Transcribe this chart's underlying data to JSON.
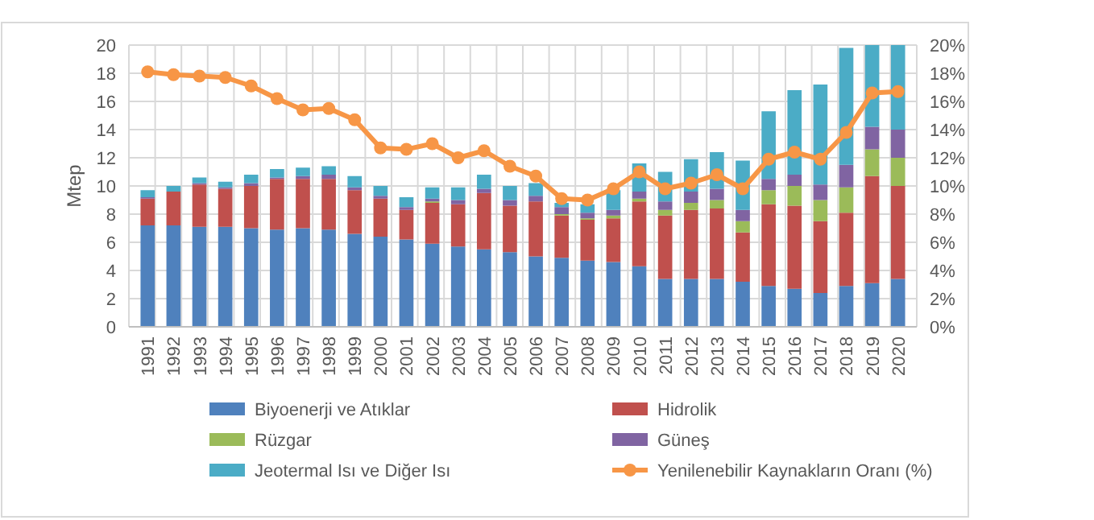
{
  "chart_data": {
    "type": "bar",
    "stacked": true,
    "ylabel": "Mtep",
    "grid": true,
    "legend": "bottom",
    "categories": [
      "1991",
      "1992",
      "1993",
      "1994",
      "1995",
      "1996",
      "1997",
      "1998",
      "1999",
      "2000",
      "2001",
      "2002",
      "2003",
      "2004",
      "2005",
      "2006",
      "2007",
      "2008",
      "2009",
      "2010",
      "2011",
      "2012",
      "2013",
      "2014",
      "2015",
      "2016",
      "2017",
      "2018",
      "2019",
      "2020"
    ],
    "ylim": [
      0,
      20
    ],
    "yticks": [
      0,
      2,
      4,
      6,
      8,
      10,
      12,
      14,
      16,
      18,
      20
    ],
    "y2lim": [
      0,
      20
    ],
    "y2ticks": [
      {
        "value": 0,
        "label": "0%"
      },
      {
        "value": 2,
        "label": "2%"
      },
      {
        "value": 4,
        "label": "4%"
      },
      {
        "value": 6,
        "label": "6%"
      },
      {
        "value": 8,
        "label": "8%"
      },
      {
        "value": 10,
        "label": "10%"
      },
      {
        "value": 12,
        "label": "12%"
      },
      {
        "value": 14,
        "label": "14%"
      },
      {
        "value": 16,
        "label": "16%"
      },
      {
        "value": 18,
        "label": "18%"
      },
      {
        "value": 20,
        "label": "20%"
      }
    ],
    "series": [
      {
        "name": "Biyoenerji ve Atıklar",
        "color": "#4f81bd",
        "values": [
          7.2,
          7.2,
          7.1,
          7.1,
          7.0,
          6.9,
          7.0,
          6.9,
          6.6,
          6.4,
          6.2,
          5.9,
          5.7,
          5.5,
          5.3,
          5.0,
          4.9,
          4.7,
          4.6,
          4.3,
          3.4,
          3.4,
          3.4,
          3.2,
          2.9,
          2.7,
          2.4,
          2.9,
          3.1,
          3.4
        ]
      },
      {
        "name": "Hidrolik",
        "color": "#c0504d",
        "values": [
          1.9,
          2.4,
          3.0,
          2.7,
          3.0,
          3.6,
          3.5,
          3.6,
          3.1,
          2.7,
          2.1,
          2.9,
          3.0,
          4.0,
          3.3,
          3.9,
          3.0,
          2.9,
          3.1,
          4.6,
          4.5,
          4.9,
          5.0,
          3.5,
          5.8,
          5.9,
          5.1,
          5.2,
          7.6,
          6.6
        ]
      },
      {
        "name": "Rüzgar",
        "color": "#9bbb59",
        "values": [
          0,
          0,
          0,
          0,
          0,
          0,
          0,
          0,
          0,
          0,
          0,
          0.1,
          0,
          0,
          0,
          0,
          0.1,
          0.1,
          0.2,
          0.2,
          0.4,
          0.5,
          0.6,
          0.8,
          1.0,
          1.4,
          1.5,
          1.8,
          1.9,
          2.0
        ]
      },
      {
        "name": "Güneş",
        "color": "#8064a2",
        "values": [
          0.1,
          0,
          0.1,
          0.1,
          0.2,
          0.1,
          0.2,
          0.3,
          0.2,
          0.2,
          0.2,
          0.2,
          0.3,
          0.3,
          0.4,
          0.4,
          0.5,
          0.4,
          0.4,
          0.5,
          0.6,
          0.8,
          0.8,
          0.8,
          0.8,
          0.8,
          1.1,
          1.6,
          1.6,
          2.0
        ]
      },
      {
        "name": "Jeotermal Isı ve Diğer Isı",
        "color": "#4bacc6",
        "values": [
          0.5,
          0.4,
          0.4,
          0.4,
          0.6,
          0.6,
          0.6,
          0.6,
          0.8,
          0.7,
          0.7,
          0.8,
          0.9,
          1.0,
          1.0,
          0.9,
          0.3,
          0.6,
          1.4,
          2.0,
          2.1,
          2.3,
          2.6,
          3.5,
          4.8,
          6.0,
          7.1,
          8.3,
          5.8,
          6.0
        ]
      },
      {
        "name": "Yenilenebilir Kaynakların Oranı (%)",
        "type": "line",
        "axis": "y2",
        "color": "#f79646",
        "marker": "circle",
        "values": [
          18.1,
          17.9,
          17.8,
          17.7,
          17.1,
          16.2,
          15.4,
          15.5,
          14.7,
          12.7,
          12.6,
          13.0,
          12.0,
          12.5,
          11.4,
          10.7,
          9.1,
          9.0,
          9.8,
          11.0,
          9.8,
          10.2,
          10.8,
          9.8,
          11.9,
          12.4,
          11.9,
          13.8,
          16.6,
          16.7
        ]
      }
    ]
  }
}
